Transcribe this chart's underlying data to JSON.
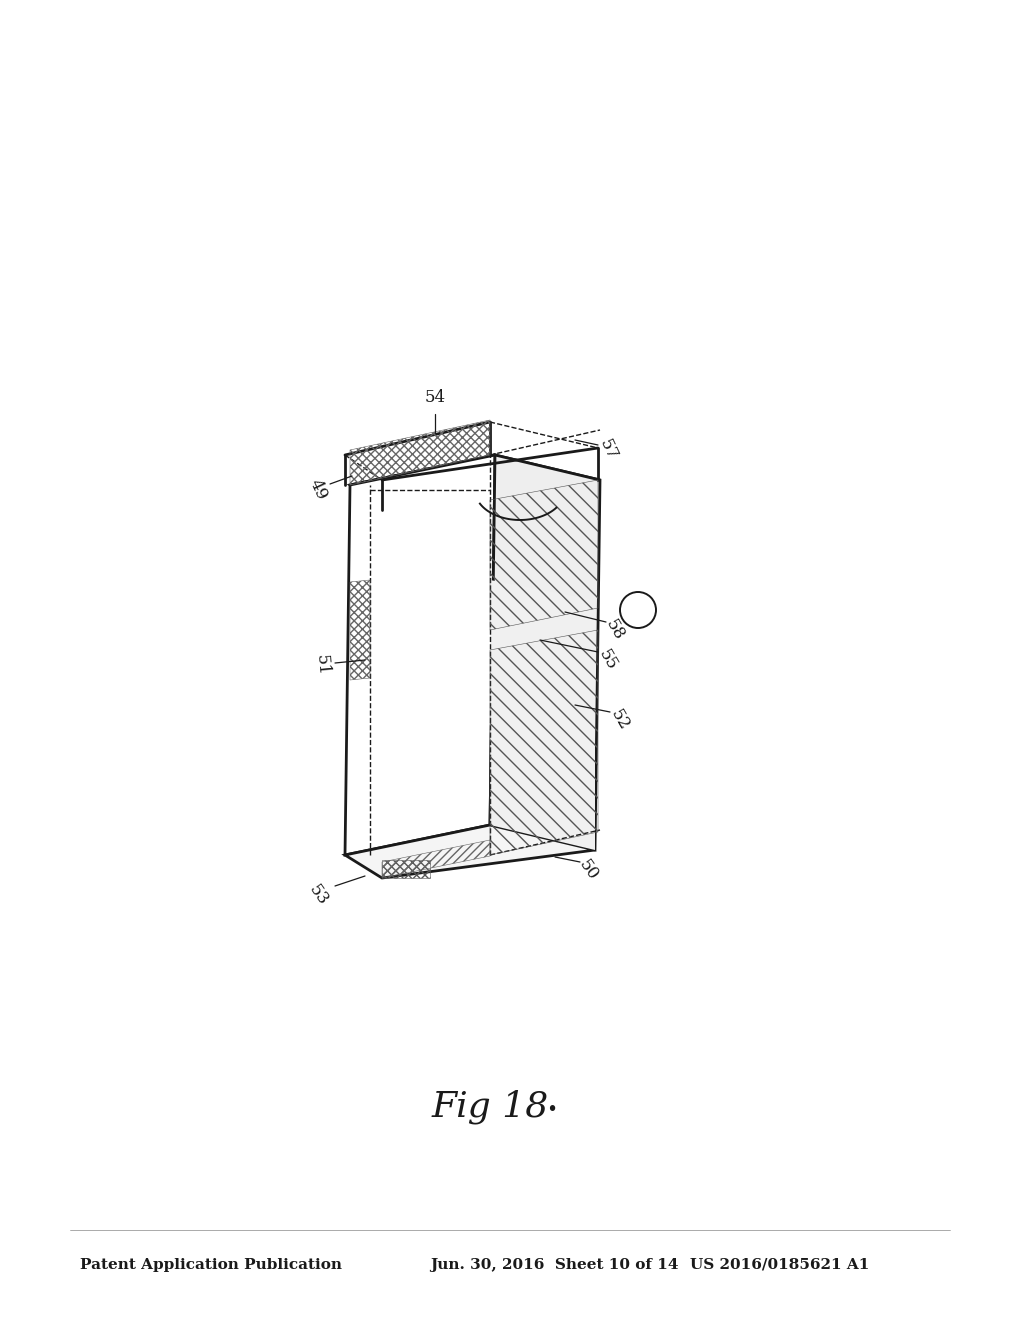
{
  "background_color": "#ffffff",
  "header_left": "Patent Application Publication",
  "header_center": "Jun. 30, 2016  Sheet 10 of 14",
  "header_right": "US 2016/0185621 A1",
  "figure_label": "Fig 18",
  "line_color": "#1a1a1a",
  "font_size_header": 11,
  "font_size_fig": 26,
  "font_size_label": 12,
  "page_width": 10.24,
  "page_height": 13.2
}
